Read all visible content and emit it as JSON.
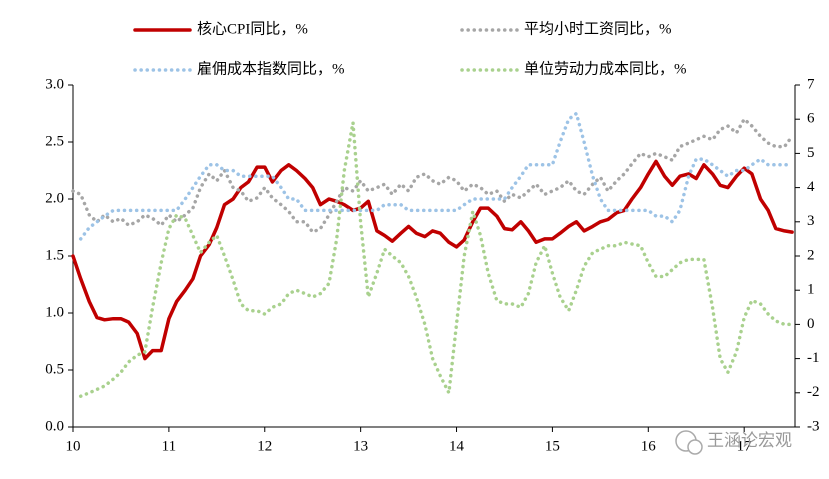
{
  "chart_data": {
    "type": "line",
    "x": [
      10,
      10.08,
      10.17,
      10.25,
      10.33,
      10.42,
      10.5,
      10.58,
      10.67,
      10.75,
      10.83,
      10.92,
      11,
      11.08,
      11.17,
      11.25,
      11.33,
      11.42,
      11.5,
      11.58,
      11.67,
      11.75,
      11.83,
      11.92,
      12,
      12.08,
      12.17,
      12.25,
      12.33,
      12.42,
      12.5,
      12.58,
      12.67,
      12.75,
      12.83,
      12.92,
      13,
      13.08,
      13.17,
      13.25,
      13.33,
      13.42,
      13.5,
      13.58,
      13.67,
      13.75,
      13.83,
      13.92,
      14,
      14.08,
      14.17,
      14.25,
      14.33,
      14.42,
      14.5,
      14.58,
      14.67,
      14.75,
      14.83,
      14.92,
      15,
      15.08,
      15.17,
      15.25,
      15.33,
      15.42,
      15.5,
      15.58,
      15.67,
      15.75,
      15.83,
      15.92,
      16,
      16.08,
      16.17,
      16.25,
      16.33,
      16.42,
      16.5,
      16.58,
      16.67,
      16.75,
      16.83,
      16.92,
      17,
      17.08,
      17.17,
      17.25,
      17.33,
      17.42,
      17.5
    ],
    "xlim": [
      10,
      17.53
    ],
    "xticks": [
      10,
      11,
      12,
      13,
      14,
      15,
      16,
      17
    ],
    "ylim": [
      0,
      3
    ],
    "yticks": [
      {
        "value": 0,
        "label": "0.0"
      },
      {
        "value": 0.5,
        "label": "0.5"
      },
      {
        "value": 1,
        "label": "1.0"
      },
      {
        "value": 1.5,
        "label": "1.5"
      },
      {
        "value": 2,
        "label": "2.0"
      },
      {
        "value": 2.5,
        "label": "2.5"
      },
      {
        "value": 3,
        "label": "3.0"
      }
    ],
    "y2lim": [
      -3,
      7
    ],
    "y2ticks": [
      -3,
      -2,
      -1,
      0,
      1,
      2,
      3,
      4,
      5,
      6,
      7
    ],
    "series": [
      {
        "name": "核心CPI同比，%",
        "color": "#c00000",
        "style": "solid",
        "values": [
          1.5,
          1.3,
          1.1,
          0.96,
          0.94,
          0.95,
          0.95,
          0.92,
          0.82,
          0.6,
          0.67,
          0.67,
          0.95,
          1.1,
          1.2,
          1.3,
          1.5,
          1.6,
          1.75,
          1.95,
          2.0,
          2.1,
          2.15,
          2.28,
          2.28,
          2.15,
          2.25,
          2.3,
          2.25,
          2.18,
          2.1,
          1.95,
          2.0,
          1.98,
          1.95,
          1.9,
          1.92,
          1.98,
          1.72,
          1.68,
          1.63,
          1.7,
          1.76,
          1.7,
          1.67,
          1.72,
          1.7,
          1.62,
          1.58,
          1.64,
          1.8,
          1.92,
          1.92,
          1.85,
          1.74,
          1.73,
          1.8,
          1.72,
          1.62,
          1.65,
          1.65,
          1.7,
          1.76,
          1.8,
          1.72,
          1.76,
          1.8,
          1.82,
          1.88,
          1.9,
          2.0,
          2.1,
          2.22,
          2.33,
          2.2,
          2.12,
          2.2,
          2.22,
          2.18,
          2.3,
          2.22,
          2.12,
          2.1,
          2.2,
          2.27,
          2.22,
          2.0,
          1.9,
          1.74,
          1.72,
          1.71
        ]
      },
      {
        "name": "平均小时工资同比，%",
        "color": "#a6a6a6",
        "style": "dotted",
        "axis": "y2",
        "values": [
          3.9,
          3.8,
          3.2,
          3.0,
          3.2,
          3.0,
          3.1,
          2.9,
          3.0,
          3.2,
          3.1,
          2.9,
          3.2,
          3.0,
          3.2,
          3.4,
          4.0,
          4.4,
          4.2,
          4.5,
          4.0,
          3.9,
          3.6,
          3.7,
          4.0,
          3.7,
          3.5,
          3.3,
          3.0,
          3.0,
          2.7,
          2.8,
          3.2,
          3.6,
          4.0,
          3.9,
          4.2,
          3.9,
          4.0,
          4.1,
          3.8,
          4.1,
          3.9,
          4.3,
          4.4,
          4.2,
          4.1,
          4.3,
          4.2,
          3.9,
          4.1,
          4.0,
          3.8,
          3.9,
          3.6,
          3.8,
          3.7,
          3.9,
          4.1,
          3.8,
          3.9,
          4.0,
          4.2,
          3.9,
          3.8,
          4.1,
          4.3,
          3.9,
          4.2,
          4.4,
          4.7,
          5.0,
          4.9,
          5.0,
          4.9,
          4.8,
          5.2,
          5.3,
          5.4,
          5.5,
          5.4,
          5.7,
          5.8,
          5.6,
          6.0,
          5.8,
          5.5,
          5.3,
          5.2,
          5.2,
          5.5
        ]
      },
      {
        "name": "雇佣成本指数同比，%",
        "color": "#9dc3e6",
        "style": "dotted",
        "values": [
          null,
          1.65,
          1.75,
          1.8,
          1.85,
          1.9,
          1.9,
          1.9,
          1.9,
          1.9,
          1.9,
          1.9,
          1.9,
          1.9,
          2.0,
          2.1,
          2.2,
          2.3,
          2.3,
          2.25,
          2.25,
          2.2,
          2.2,
          2.2,
          2.2,
          2.2,
          2.1,
          2.0,
          2.0,
          1.9,
          1.9,
          1.9,
          1.9,
          1.9,
          1.9,
          1.9,
          1.9,
          1.9,
          1.9,
          1.95,
          1.95,
          1.95,
          1.9,
          1.9,
          1.9,
          1.9,
          1.9,
          1.9,
          1.9,
          1.95,
          2.0,
          2.0,
          2.0,
          2.0,
          2.0,
          2.1,
          2.2,
          2.3,
          2.3,
          2.3,
          2.3,
          2.5,
          2.7,
          2.75,
          2.5,
          2.2,
          2.0,
          1.9,
          1.9,
          1.9,
          1.9,
          1.9,
          1.9,
          1.85,
          1.85,
          1.8,
          1.9,
          2.2,
          2.35,
          2.35,
          2.3,
          2.25,
          2.2,
          2.25,
          2.25,
          2.3,
          2.35,
          2.3,
          2.3,
          2.3,
          2.3
        ]
      },
      {
        "name": "单位劳动力成本同比，%",
        "color": "#a9d18e",
        "style": "dotted",
        "axis": "y2",
        "values": [
          null,
          -2.1,
          -2.0,
          -1.9,
          -1.8,
          -1.6,
          -1.4,
          -1.1,
          -0.9,
          -0.8,
          0.5,
          1.8,
          2.8,
          3.2,
          3.1,
          2.6,
          2.1,
          2.4,
          2.6,
          2.0,
          1.3,
          0.6,
          0.4,
          0.4,
          0.3,
          0.5,
          0.6,
          0.9,
          1.0,
          0.9,
          0.8,
          0.9,
          1.2,
          2.5,
          4.5,
          5.9,
          3.0,
          0.8,
          1.5,
          2.2,
          2.0,
          1.8,
          1.4,
          0.8,
          0.0,
          -1.0,
          -1.5,
          -2.0,
          0.0,
          2.0,
          3.3,
          2.6,
          1.5,
          0.7,
          0.6,
          0.6,
          0.5,
          0.9,
          1.8,
          2.3,
          1.5,
          0.8,
          0.4,
          1.0,
          1.7,
          2.1,
          2.2,
          2.3,
          2.3,
          2.4,
          2.35,
          2.3,
          1.8,
          1.4,
          1.4,
          1.6,
          1.8,
          1.9,
          1.9,
          1.9,
          0.5,
          -1.0,
          -1.4,
          -0.8,
          0.2,
          0.7,
          0.6,
          0.3,
          0.1,
          0.0,
          0.0
        ]
      }
    ],
    "watermark": "王涵论宏观"
  }
}
